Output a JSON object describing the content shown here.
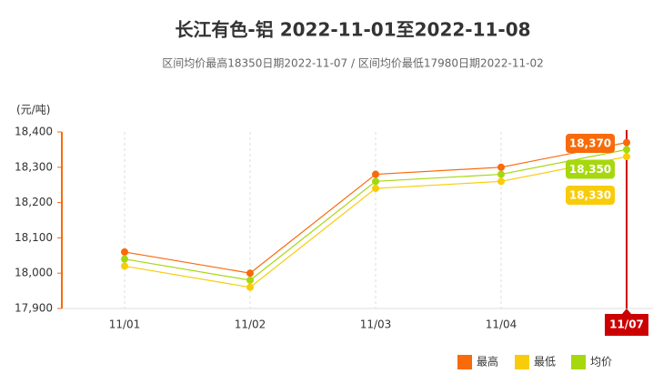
{
  "chart_data": {
    "type": "line",
    "title": "长江有色-铝 2022-11-01至2022-11-08",
    "subtitle": "区间均价最高18350日期2022-11-07 / 区间均价最低17980日期2022-11-02",
    "y_label": "(元/吨)",
    "categories": [
      "11/01",
      "11/02",
      "11/03",
      "11/04",
      "11/07"
    ],
    "series": [
      {
        "name": "最高",
        "color": "#f86a0a",
        "values": [
          18060,
          18000,
          18280,
          18300,
          18370
        ],
        "value_labels": [
          null,
          null,
          null,
          null,
          "18,370"
        ]
      },
      {
        "name": "最低",
        "color": "#f8cc0a",
        "values": [
          18020,
          17960,
          18240,
          18260,
          18330
        ],
        "value_labels": [
          null,
          null,
          null,
          null,
          "18,330"
        ]
      },
      {
        "name": "均价",
        "color": "#a6d80e",
        "values": [
          18040,
          17980,
          18260,
          18280,
          18350
        ],
        "value_labels": [
          null,
          null,
          null,
          null,
          "18,350"
        ]
      }
    ],
    "ylim": [
      17900,
      18400
    ],
    "yticks": [
      {
        "value": 17900,
        "label": "17,900"
      },
      {
        "value": 18000,
        "label": "18,000"
      },
      {
        "value": 18100,
        "label": "18,100"
      },
      {
        "value": 18200,
        "label": "18,200"
      },
      {
        "value": 18300,
        "label": "18,300"
      },
      {
        "value": 18400,
        "label": "18,400"
      }
    ],
    "grid": true,
    "legend": "bottom-right"
  }
}
